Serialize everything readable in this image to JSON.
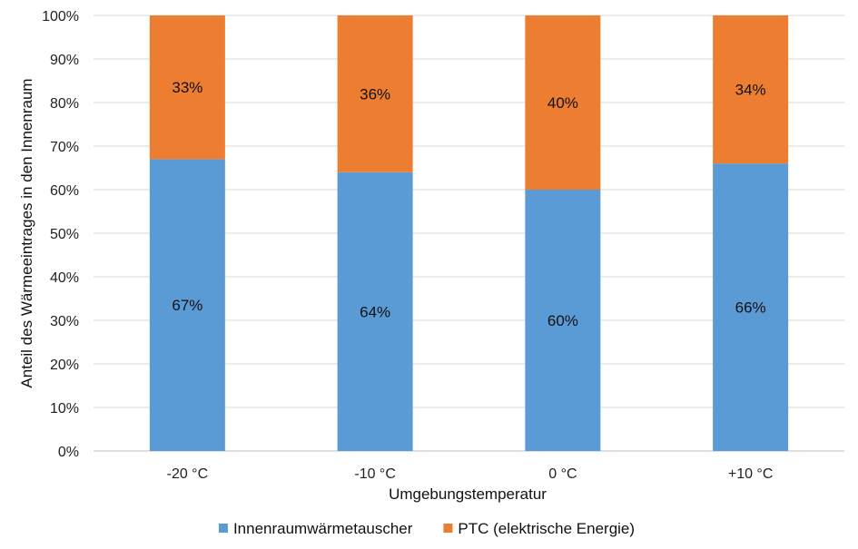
{
  "chart_data": {
    "type": "bar",
    "stacked": true,
    "percent_axis": true,
    "categories": [
      "-20 °C",
      "-10 °C",
      "0 °C",
      "+10 °C"
    ],
    "series": [
      {
        "name": "Innenraumwärmetauscher",
        "color": "#5b9bd5",
        "values": [
          67,
          64,
          60,
          66
        ],
        "labels": [
          "67%",
          "64%",
          "60%",
          "66%"
        ]
      },
      {
        "name": "PTC (elektrische Energie)",
        "color": "#ed7d31",
        "values": [
          33,
          36,
          40,
          34
        ],
        "labels": [
          "33%",
          "36%",
          "40%",
          "34%"
        ]
      }
    ],
    "xlabel": "Umgebungstemperatur",
    "ylabel": "Anteil des Wärmeeintrages in den Innenraum",
    "ylim": [
      0,
      100
    ],
    "yticks": [
      "0%",
      "10%",
      "20%",
      "30%",
      "40%",
      "50%",
      "60%",
      "70%",
      "80%",
      "90%",
      "100%"
    ],
    "grid": true,
    "legend_position": "bottom"
  }
}
